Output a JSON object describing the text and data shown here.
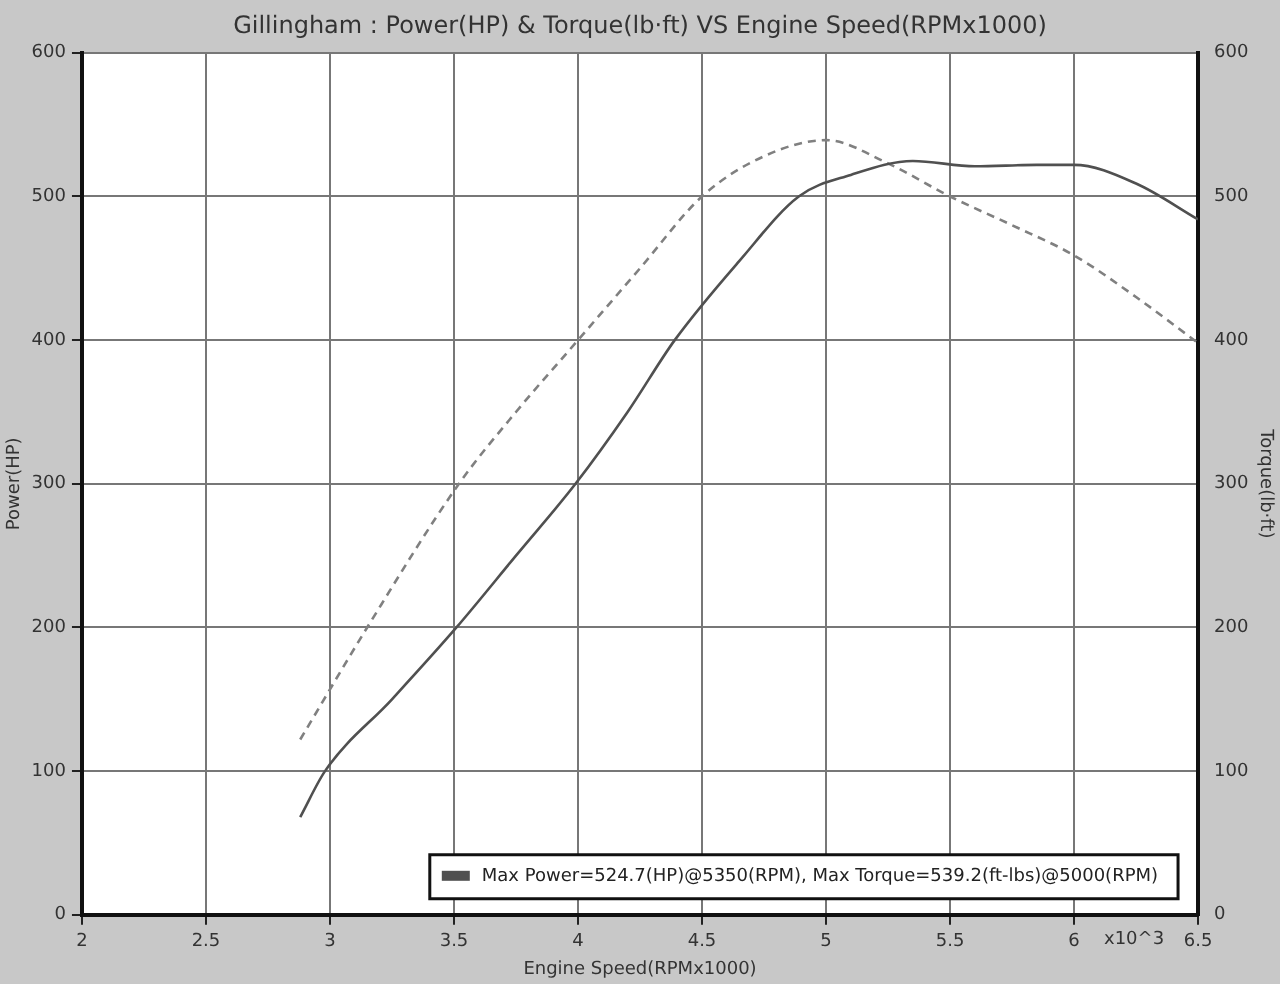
{
  "chart_data": {
    "type": "line",
    "title": "Gillingham : Power(HP) & Torque(lb·ft) VS Engine Speed(RPMx1000)",
    "xlabel": "Engine Speed(RPMx1000)",
    "ylabel": "Power(HP)",
    "y2label": "Torque(lb·ft)",
    "xlim": [
      2,
      6.5
    ],
    "xticks": [
      2,
      2.5,
      3,
      3.5,
      4,
      4.5,
      5,
      5.5,
      6,
      6.5
    ],
    "ylim": [
      0,
      600
    ],
    "yticks": [
      0,
      100,
      200,
      300,
      400,
      500,
      600
    ],
    "y2lim": [
      0,
      600
    ],
    "y2ticks": [
      0,
      100,
      200,
      300,
      400,
      500,
      600
    ],
    "grid": true,
    "legend": "bottom right",
    "marker": "none",
    "annotations": [
      "x10^3"
    ],
    "series": [
      {
        "name": "Max Power=524.7(HP)@5350(RPM), Max Torque=539.2(ft-lbs)@5000(RPM)",
        "color": "#505050",
        "line_style": "solid",
        "x": [
          2.88,
          2.98,
          3.25,
          3.51,
          3.75,
          3.99,
          4.2,
          4.39,
          4.65,
          4.89,
          5.1,
          5.35,
          5.6,
          5.85,
          6.0,
          6.25,
          6.5
        ],
        "values": [
          68,
          100,
          150,
          200,
          250,
          300,
          350,
          400,
          455,
          500,
          515,
          524.7,
          521,
          522,
          522,
          509,
          484
        ]
      },
      {
        "color": "#808080",
        "line_style": "dashed",
        "axis": "y2",
        "x": [
          2.88,
          3.15,
          3.52,
          3.75,
          4.0,
          4.25,
          4.5,
          4.75,
          5.0,
          5.25,
          5.5,
          5.75,
          6.0,
          6.25,
          6.5
        ],
        "values": [
          122,
          200,
          300,
          350,
          400,
          450,
          500,
          528,
          539.2,
          523,
          500,
          480,
          459,
          430,
          398
        ]
      }
    ]
  }
}
